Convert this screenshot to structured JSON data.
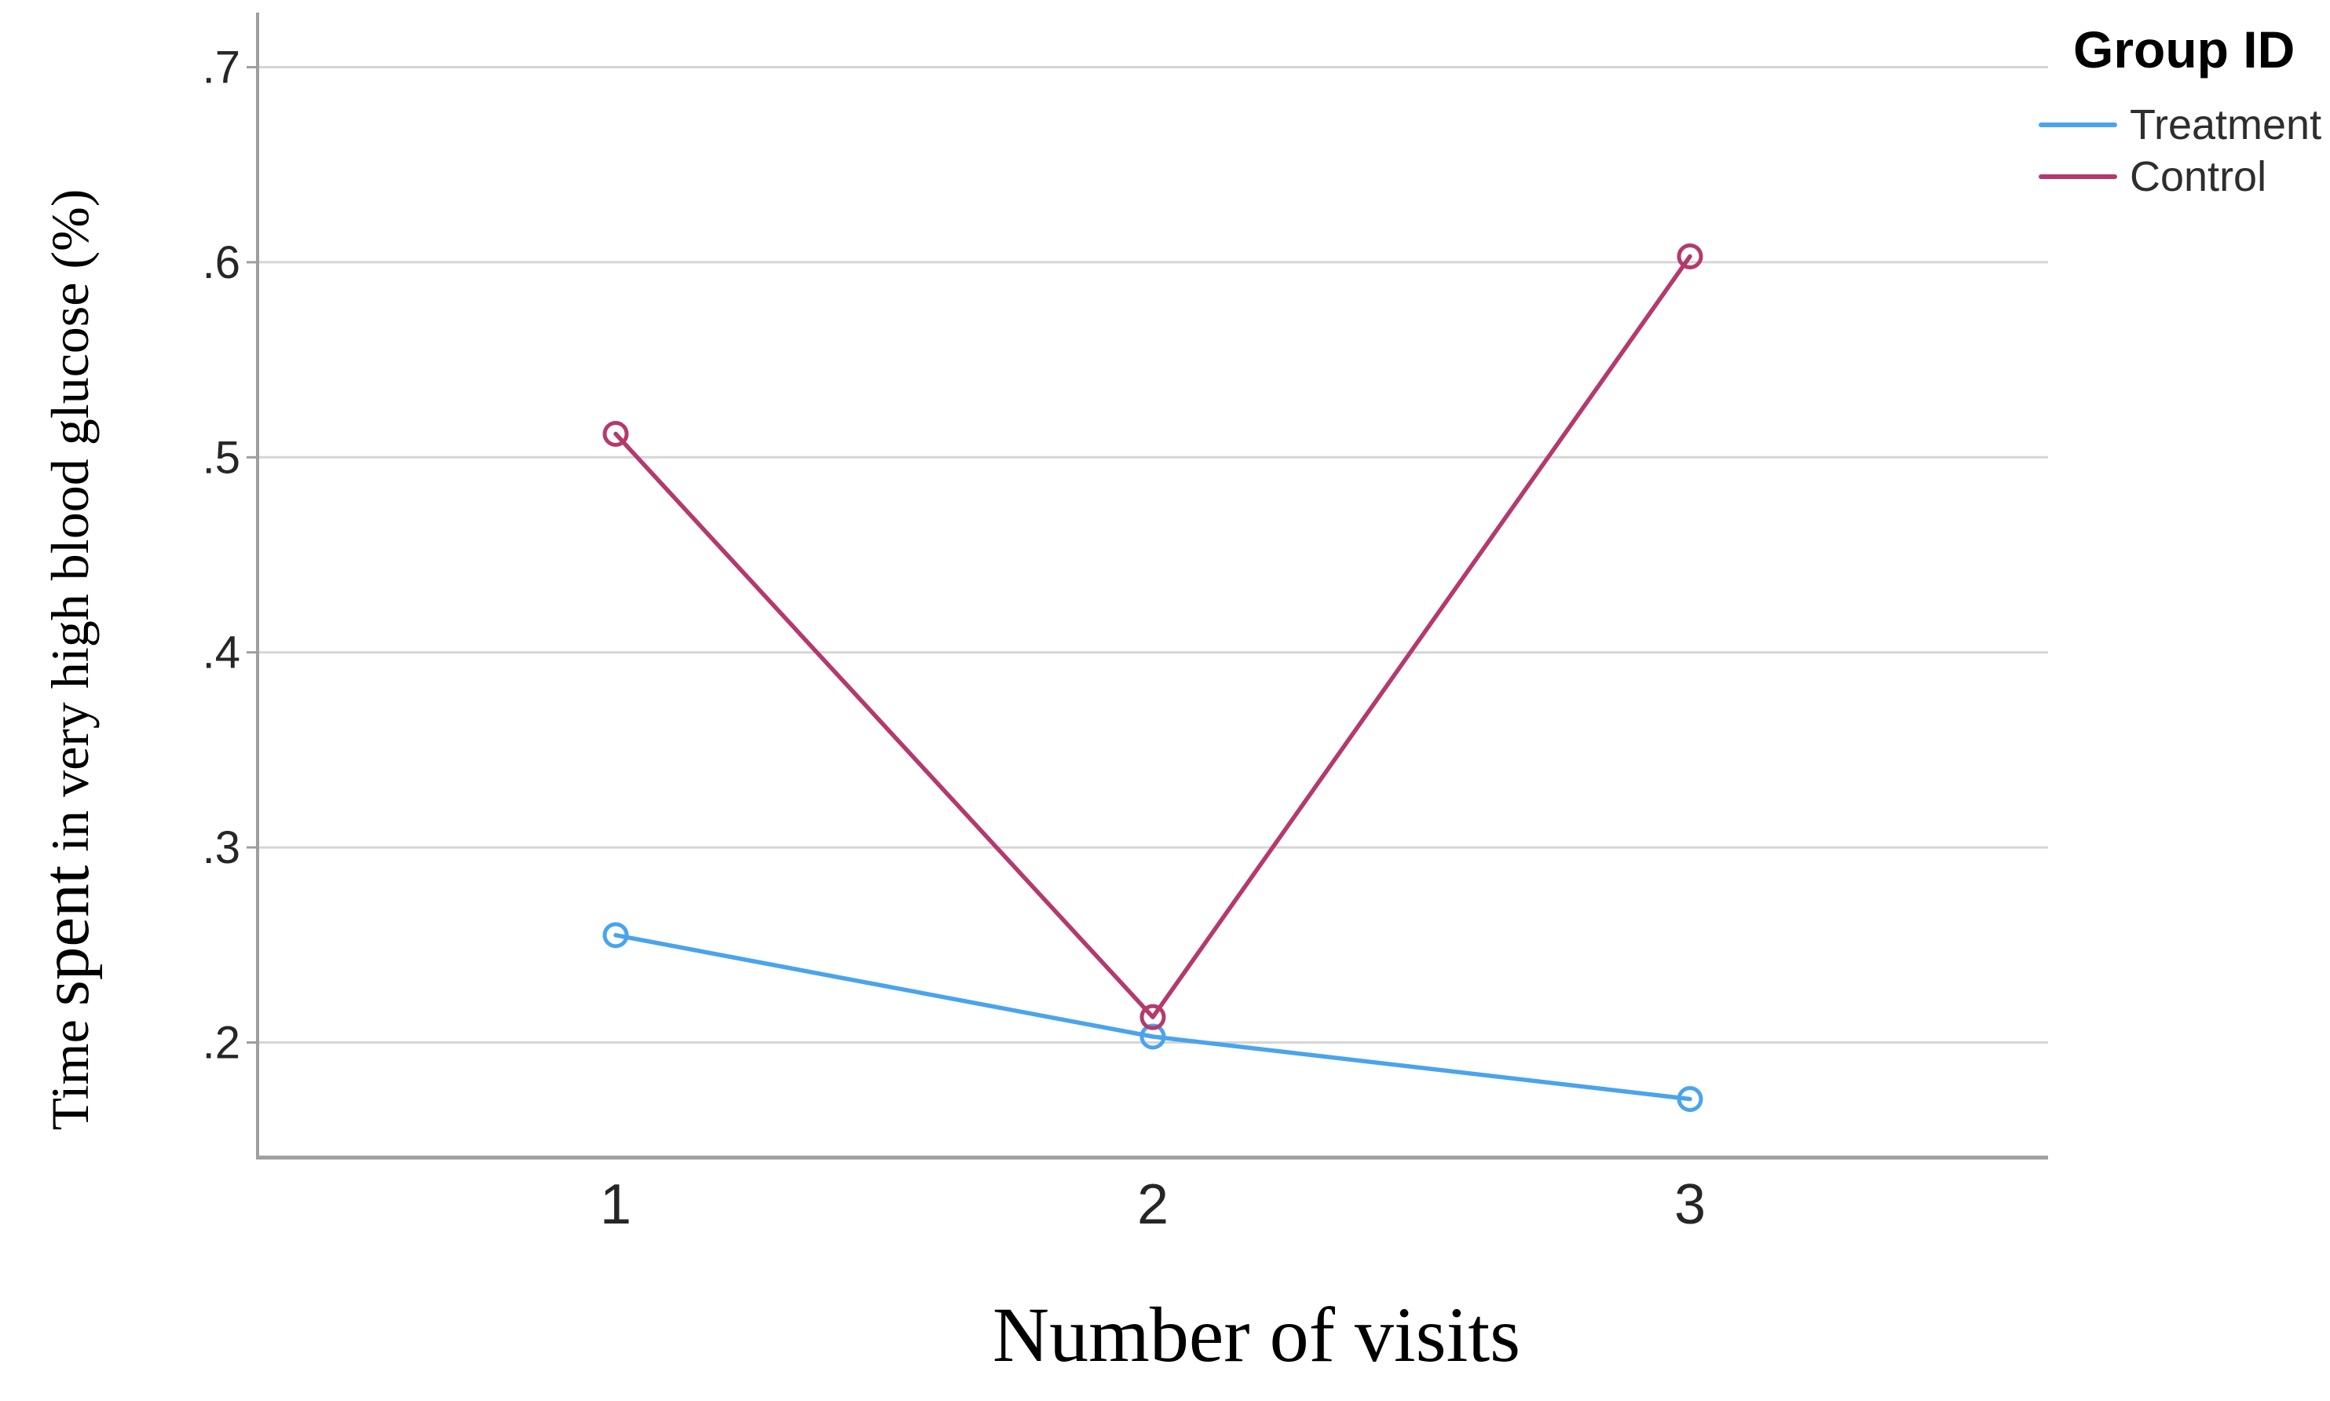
{
  "figure": {
    "background": "#ffffff"
  },
  "chart_data": {
    "type": "line",
    "title": "",
    "xlabel": "Number of visits",
    "ylabel": "Time spent in very high blood glucose (%)",
    "ylabel_parts": {
      "pre": "Time ",
      "emph": "spent",
      "post": " in very high blood glucose (%)"
    },
    "legend_title": "Group ID",
    "legend_position": "top-right",
    "categories": [
      "1",
      "2",
      "3"
    ],
    "series": [
      {
        "name": "Treatment",
        "color": "#4aa4ec",
        "values": [
          0.255,
          0.203,
          0.171
        ]
      },
      {
        "name": "Control",
        "color": "#b43a6d",
        "values": [
          0.512,
          0.213,
          0.603
        ]
      }
    ],
    "marker": "open-circle",
    "y_ticks": [
      0.7,
      0.6,
      0.5,
      0.4,
      0.3,
      0.2
    ],
    "y_tick_labels": [
      ".7",
      ".6",
      ".5",
      ".4",
      ".3",
      ".2"
    ],
    "ylim": [
      0.141,
      0.728
    ],
    "grid": "horizontal-gridlines",
    "gridline_color": "#d5d5d5",
    "axis_color": "#9e9ea0",
    "tick_text_color": "#262626"
  }
}
